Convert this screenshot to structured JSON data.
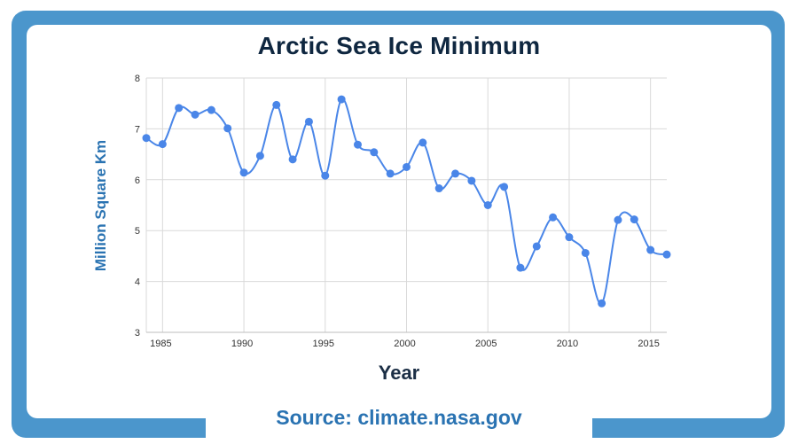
{
  "chart_data": {
    "type": "line",
    "title": "Arctic Sea Ice Minimum",
    "xlabel": "Year",
    "ylabel": "Million Square Km",
    "source": "Source: climate.nasa.gov",
    "xlim": [
      1984,
      2016
    ],
    "ylim": [
      3,
      8
    ],
    "x_ticks": [
      1985,
      1990,
      1995,
      2000,
      2005,
      2010,
      2015
    ],
    "y_ticks": [
      3,
      4,
      5,
      6,
      7,
      8
    ],
    "grid": true,
    "series": [
      {
        "color": "#4a86e8",
        "x": [
          1984,
          1985,
          1986,
          1987,
          1988,
          1989,
          1990,
          1991,
          1992,
          1993,
          1994,
          1995,
          1996,
          1997,
          1998,
          1999,
          2000,
          2001,
          2002,
          2003,
          2004,
          2005,
          2006,
          2007,
          2008,
          2009,
          2010,
          2011,
          2012,
          2013,
          2014,
          2015,
          2016
        ],
        "values": [
          6.82,
          6.7,
          7.41,
          7.28,
          7.37,
          7.01,
          6.14,
          6.47,
          7.47,
          6.4,
          7.14,
          6.08,
          7.58,
          6.69,
          6.54,
          6.12,
          6.25,
          6.73,
          5.83,
          6.12,
          5.98,
          5.5,
          5.86,
          4.27,
          4.69,
          5.26,
          4.87,
          4.56,
          3.57,
          5.21,
          5.22,
          4.62,
          4.53
        ]
      }
    ]
  }
}
